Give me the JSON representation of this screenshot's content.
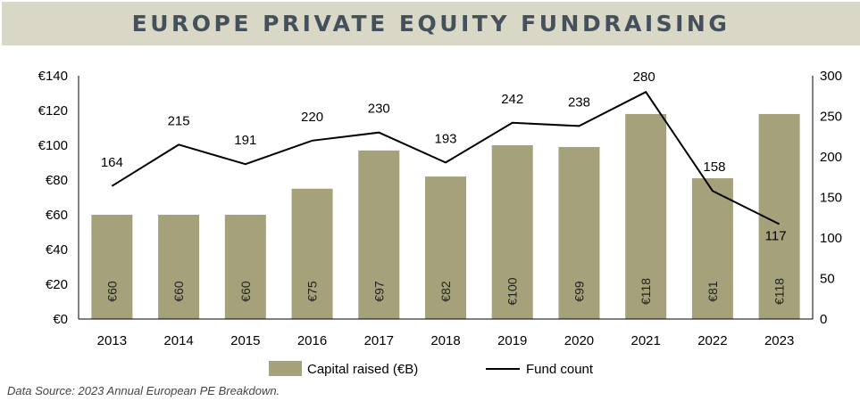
{
  "title": "EUROPE PRIVATE EQUITY FUNDRAISING",
  "source": "Data Source: 2023 Annual European PE Breakdown.",
  "colors": {
    "bar": "#a4a17b",
    "line": "#000000",
    "title_bg": "#d9d8c6",
    "title_text": "#44505c"
  },
  "chart_data": {
    "type": "bar",
    "categories": [
      "2013",
      "2014",
      "2015",
      "2016",
      "2017",
      "2018",
      "2019",
      "2020",
      "2021",
      "2022",
      "2023"
    ],
    "series": [
      {
        "name": "Capital raised (€B)",
        "type": "bar",
        "axis": "left",
        "values": [
          60,
          60,
          60,
          75,
          97,
          82,
          100,
          99,
          118,
          81,
          118
        ],
        "labels": [
          "€60",
          "€60",
          "€60",
          "€75",
          "€97",
          "€82",
          "€100",
          "€99",
          "€118",
          "€81",
          "€118"
        ]
      },
      {
        "name": "Fund count",
        "type": "line",
        "axis": "right",
        "values": [
          164,
          215,
          191,
          220,
          230,
          193,
          242,
          238,
          280,
          158,
          117
        ],
        "labels": [
          "164",
          "215",
          "191",
          "220",
          "230",
          "193",
          "242",
          "238",
          "280",
          "158",
          "117"
        ]
      }
    ],
    "y_left": {
      "ylim": [
        0,
        140
      ],
      "ticks": [
        0,
        20,
        40,
        60,
        80,
        100,
        120,
        140
      ],
      "tick_labels": [
        "€0",
        "€20",
        "€40",
        "€60",
        "€80",
        "€100",
        "€120",
        "€140"
      ]
    },
    "y_right": {
      "ylim": [
        0,
        300
      ],
      "ticks": [
        0,
        50,
        100,
        150,
        200,
        250,
        300
      ],
      "tick_labels": [
        "0",
        "50",
        "100",
        "150",
        "200",
        "250",
        "300"
      ]
    },
    "legend": {
      "position": "bottom",
      "items": [
        "Capital raised (€B)",
        "Fund count"
      ]
    },
    "grid": false
  }
}
